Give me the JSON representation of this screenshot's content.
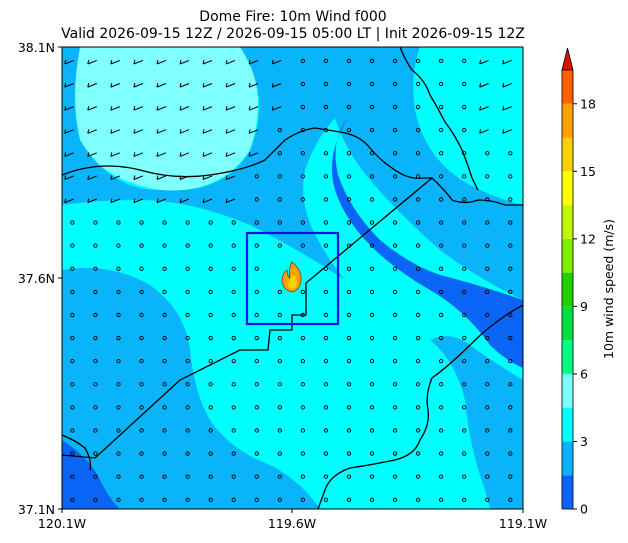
{
  "figure": {
    "title_line1": "Dome Fire: 10m Wind f000",
    "title_line2": "Valid 2026-09-15 12Z / 2026-09-15 05:00 LT | Init 2026-09-15 12Z"
  },
  "map": {
    "x_ticks": [
      "120.1W",
      "119.6W",
      "119.1W"
    ],
    "y_ticks": [
      "38.1N",
      "37.6N",
      "37.1N"
    ],
    "lon_range": [
      -120.1,
      -119.1
    ],
    "lat_range": [
      37.1,
      38.1
    ],
    "fire_icon": "flame-icon",
    "fire_box_color": "#1010e8",
    "barb_marker": "calm-circle"
  },
  "colorbar": {
    "label": "10m wind speed (m/s)",
    "ticks": [
      "0",
      "3",
      "6",
      "9",
      "12",
      "15",
      "18"
    ],
    "tick_values": [
      0,
      3,
      6,
      9,
      12,
      15,
      18
    ],
    "range": [
      0,
      19.5
    ],
    "levels": [
      0,
      1.5,
      3,
      4.5,
      6,
      7.5,
      9,
      10.5,
      12,
      13.5,
      15,
      16.5,
      18,
      19.5
    ],
    "colors": [
      "#0a64f5",
      "#0ab4fa",
      "#00ffff",
      "#80ffff",
      "#00ff80",
      "#00e040",
      "#20d000",
      "#80f000",
      "#c0f800",
      "#ffff00",
      "#ffd000",
      "#ffa000",
      "#ff6000",
      "#ff2000"
    ],
    "extend": "max"
  }
}
